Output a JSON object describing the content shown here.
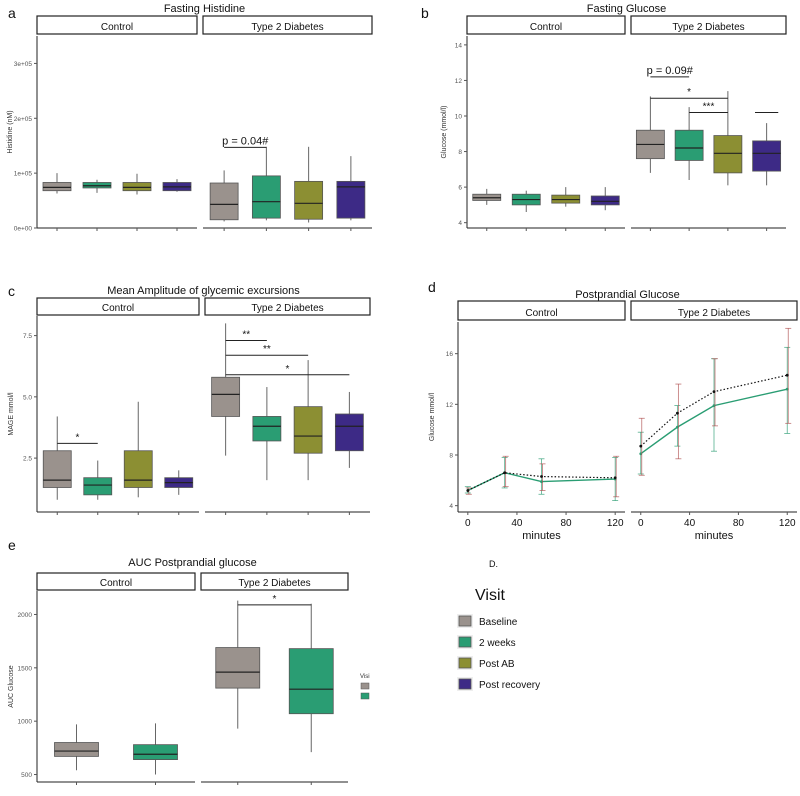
{
  "colors": {
    "baseline": "#9a928d",
    "weeks2": "#2a9d73",
    "post_ab": "#8c8f33",
    "post_recovery": "#3d2a86",
    "frame": "#222222",
    "tick": "#555555",
    "curve_solid": "#2a9d73",
    "curve_dotted": "#111111",
    "err_red": "#b05050"
  },
  "legend": {
    "title": "Visit",
    "items": [
      {
        "label": "Baseline",
        "color": "#9a928d"
      },
      {
        "label": "2 weeks",
        "color": "#2a9d73"
      },
      {
        "label": "Post AB",
        "color": "#8c8f33"
      },
      {
        "label": "Post recovery",
        "color": "#3d2a86"
      }
    ]
  },
  "chart_data": [
    {
      "type": "box",
      "panel": "a",
      "title": "Fasting Histidine",
      "ylabel": "Histidine (nM)",
      "ylim": [
        0,
        350000
      ],
      "yticks": [
        0,
        100000,
        200000,
        300000
      ],
      "ytick_labels": [
        "0e+00",
        "1e+05",
        "2e+05",
        "3e+05"
      ],
      "facets": [
        {
          "label": "Control",
          "boxes": [
            {
              "visit": "Baseline",
              "min": 63000,
              "q1": 68000,
              "median": 74000,
              "q3": 83000,
              "max": 100000
            },
            {
              "visit": "2 weeks",
              "min": 64000,
              "q1": 73000,
              "median": 77000,
              "q3": 83000,
              "max": 88000
            },
            {
              "visit": "Post AB",
              "min": 61000,
              "q1": 68000,
              "median": 74000,
              "q3": 83000,
              "max": 99000
            },
            {
              "visit": "Post recovery",
              "min": 66000,
              "q1": 68000,
              "median": 75000,
              "q3": 83000,
              "max": 89000
            }
          ]
        },
        {
          "label": "Type 2 Diabetes",
          "boxes": [
            {
              "visit": "Baseline",
              "min": 12000,
              "q1": 15000,
              "median": 43000,
              "q3": 82000,
              "max": 105000
            },
            {
              "visit": "2 weeks",
              "min": 14000,
              "q1": 18000,
              "median": 48000,
              "q3": 95000,
              "max": 148000
            },
            {
              "visit": "Post AB",
              "min": 10000,
              "q1": 16000,
              "median": 45000,
              "q3": 85000,
              "max": 148000
            },
            {
              "visit": "Post recovery",
              "min": 14000,
              "q1": 18000,
              "median": 75000,
              "q3": 85000,
              "max": 131000
            }
          ]
        }
      ],
      "annotations": [
        {
          "facet": 1,
          "from": 0,
          "to": 1,
          "y": 147000,
          "text": "p = 0.04#"
        }
      ]
    },
    {
      "type": "box",
      "panel": "b",
      "title": "Fasting Glucose",
      "ylabel": "Glucose (mmol/l)",
      "ylim": [
        3.7,
        14.5
      ],
      "yticks": [
        4,
        6,
        8,
        10,
        12,
        14
      ],
      "ytick_labels": [
        "4",
        "6",
        "8",
        "10",
        "12",
        "14"
      ],
      "facets": [
        {
          "label": "Control",
          "boxes": [
            {
              "visit": "Baseline",
              "min": 5.0,
              "q1": 5.25,
              "median": 5.4,
              "q3": 5.6,
              "max": 5.9
            },
            {
              "visit": "2 weeks",
              "min": 4.6,
              "q1": 5.0,
              "median": 5.3,
              "q3": 5.6,
              "max": 5.8
            },
            {
              "visit": "Post AB",
              "min": 4.9,
              "q1": 5.1,
              "median": 5.3,
              "q3": 5.55,
              "max": 6.0
            },
            {
              "visit": "Post recovery",
              "min": 4.7,
              "q1": 5.0,
              "median": 5.2,
              "q3": 5.5,
              "max": 6.0
            }
          ]
        },
        {
          "label": "Type 2 Diabetes",
          "boxes": [
            {
              "visit": "Baseline",
              "min": 6.8,
              "q1": 7.6,
              "median": 8.4,
              "q3": 9.2,
              "max": 11.1
            },
            {
              "visit": "2 weeks",
              "min": 6.4,
              "q1": 7.5,
              "median": 8.2,
              "q3": 9.2,
              "max": 10.5
            },
            {
              "visit": "Post AB",
              "min": 6.1,
              "q1": 6.8,
              "median": 7.9,
              "q3": 8.9,
              "max": 11.4
            },
            {
              "visit": "Post recovery",
              "min": 6.1,
              "q1": 6.9,
              "median": 7.9,
              "q3": 8.6,
              "max": 9.6
            }
          ]
        }
      ],
      "annotations": [
        {
          "facet": 1,
          "from": 0,
          "to": 1,
          "y": 12.2,
          "text": "p = 0.09#"
        },
        {
          "facet": 1,
          "from": 0,
          "to": 2,
          "y": 11.0,
          "text": "*"
        },
        {
          "facet": 1,
          "from": 1,
          "to": 2,
          "y": 10.2,
          "text": "***"
        },
        {
          "facet": 1,
          "from": 2.7,
          "to": 3.3,
          "y": 10.2,
          "text": ""
        }
      ]
    },
    {
      "type": "box",
      "panel": "c",
      "title": "Mean Amplitude of glycemic excursions",
      "ylabel": "MAGE mmol/l",
      "ylim": [
        0.3,
        8.3
      ],
      "yticks": [
        2.5,
        5.0,
        7.5
      ],
      "ytick_labels": [
        "2.5",
        "5.0",
        "7.5"
      ],
      "facets": [
        {
          "label": "Control",
          "boxes": [
            {
              "visit": "Baseline",
              "min": 0.8,
              "q1": 1.3,
              "median": 1.6,
              "q3": 2.8,
              "max": 4.2
            },
            {
              "visit": "2 weeks",
              "min": 0.8,
              "q1": 1.0,
              "median": 1.4,
              "q3": 1.7,
              "max": 2.4
            },
            {
              "visit": "Post AB",
              "min": 0.9,
              "q1": 1.3,
              "median": 1.6,
              "q3": 2.8,
              "max": 4.8
            },
            {
              "visit": "Post recovery",
              "min": 1.0,
              "q1": 1.3,
              "median": 1.5,
              "q3": 1.7,
              "max": 2.0
            }
          ]
        },
        {
          "label": "Type 2 Diabetes",
          "boxes": [
            {
              "visit": "Baseline",
              "min": 2.6,
              "q1": 4.2,
              "median": 5.1,
              "q3": 5.8,
              "max": 8.0
            },
            {
              "visit": "2 weeks",
              "min": 1.6,
              "q1": 3.2,
              "median": 3.8,
              "q3": 4.2,
              "max": 5.4
            },
            {
              "visit": "Post AB",
              "min": 1.6,
              "q1": 2.7,
              "median": 3.4,
              "q3": 4.6,
              "max": 6.5
            },
            {
              "visit": "Post recovery",
              "min": 2.1,
              "q1": 2.8,
              "median": 3.8,
              "q3": 4.3,
              "max": 5.2
            }
          ]
        }
      ],
      "annotations": [
        {
          "facet": 0,
          "from": 0,
          "to": 1,
          "y": 3.1,
          "text": "*"
        },
        {
          "facet": 1,
          "from": 0,
          "to": 1,
          "y": 7.3,
          "text": "**"
        },
        {
          "facet": 1,
          "from": 0,
          "to": 2,
          "y": 6.7,
          "text": "**"
        },
        {
          "facet": 1,
          "from": 0,
          "to": 3,
          "y": 5.9,
          "text": "*"
        }
      ]
    },
    {
      "type": "line",
      "panel": "d",
      "title": "Postprandial Glucose",
      "xlabel": "minutes",
      "ylabel": "Glucose mmol/l",
      "ylim": [
        3.5,
        18.5
      ],
      "yticks": [
        4,
        8,
        12,
        16
      ],
      "ytick_labels": [
        "4",
        "8",
        "12",
        "16"
      ],
      "xlim": [
        -8,
        128
      ],
      "xticks": [
        0,
        40,
        80,
        120
      ],
      "xtick_labels": [
        "0",
        "40",
        "80",
        "120"
      ],
      "facets": [
        {
          "label": "Control",
          "series": [
            {
              "name": "solid",
              "style": "solid",
              "x": [
                0,
                30,
                60,
                120
              ],
              "y": [
                5.2,
                6.6,
                5.9,
                6.1
              ],
              "err": [
                [
                  5.0,
                  5.5
                ],
                [
                  5.4,
                  7.8
                ],
                [
                  4.9,
                  7.7
                ],
                [
                  4.4,
                  7.8
                ]
              ]
            },
            {
              "name": "dotted",
              "style": "dotted",
              "x": [
                0,
                30,
                60,
                120
              ],
              "y": [
                5.2,
                6.6,
                6.3,
                6.2
              ],
              "err": [
                [
                  4.9,
                  5.4
                ],
                [
                  5.5,
                  7.9
                ],
                [
                  5.2,
                  7.3
                ],
                [
                  4.7,
                  7.9
                ]
              ]
            }
          ]
        },
        {
          "label": "Type 2 Diabetes",
          "series": [
            {
              "name": "solid",
              "style": "solid",
              "x": [
                0,
                30,
                60,
                120
              ],
              "y": [
                8.1,
                10.2,
                11.9,
                13.2
              ],
              "err": [
                [
                  6.5,
                  9.8
                ],
                [
                  8.7,
                  11.9
                ],
                [
                  8.3,
                  15.6
                ],
                [
                  9.7,
                  16.5
                ]
              ]
            },
            {
              "name": "dotted",
              "style": "dotted",
              "x": [
                0,
                30,
                60,
                120
              ],
              "y": [
                8.7,
                11.3,
                13.0,
                14.3
              ],
              "err": [
                [
                  6.4,
                  10.9
                ],
                [
                  7.7,
                  13.6
                ],
                [
                  10.3,
                  15.6
                ],
                [
                  10.5,
                  18.0
                ]
              ]
            }
          ]
        }
      ],
      "caption": "D."
    },
    {
      "type": "box",
      "panel": "e",
      "title": "AUC Postprandial glucose",
      "ylabel": "AUC Glucose",
      "ylim": [
        430,
        2220
      ],
      "yticks": [
        500,
        1000,
        1500,
        2000
      ],
      "ytick_labels": [
        "500",
        "1000",
        "1500",
        "2000"
      ],
      "facets": [
        {
          "label": "Control",
          "boxes": [
            {
              "visit": "Baseline",
              "min": 540,
              "q1": 670,
              "median": 720,
              "q3": 800,
              "max": 970
            },
            {
              "visit": "2 weeks",
              "min": 500,
              "q1": 640,
              "median": 690,
              "q3": 780,
              "max": 980
            }
          ]
        },
        {
          "label": "Type 2 Diabetes",
          "boxes": [
            {
              "visit": "Baseline",
              "min": 930,
              "q1": 1310,
              "median": 1460,
              "q3": 1690,
              "max": 2130
            },
            {
              "visit": "2 weeks",
              "min": 710,
              "q1": 1070,
              "median": 1300,
              "q3": 1680,
              "max": 2100
            }
          ]
        }
      ],
      "annotations": [
        {
          "facet": 1,
          "from": 0,
          "to": 1,
          "y": 2090,
          "text": "*"
        }
      ],
      "side_legend_title": "Visi"
    }
  ]
}
